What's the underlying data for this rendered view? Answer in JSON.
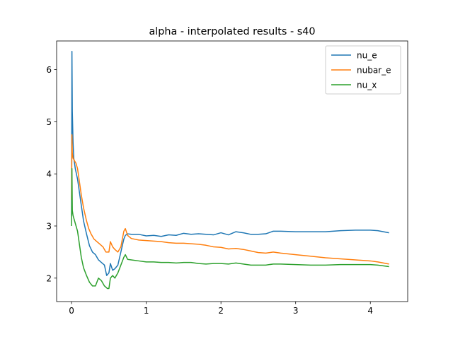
{
  "chart_data": {
    "type": "line",
    "title": "alpha - interpolated results - s40",
    "xlabel": "",
    "ylabel": "",
    "xlim": [
      -0.2,
      4.5
    ],
    "ylim": [
      1.55,
      6.55
    ],
    "xticks": [
      0,
      1,
      2,
      3,
      4
    ],
    "yticks": [
      2,
      3,
      4,
      5,
      6
    ],
    "grid": false,
    "legend_position": "top-right",
    "series": [
      {
        "name": "nu_e",
        "color": "#1f77b4",
        "points": [
          [
            0.0,
            3.2
          ],
          [
            0.005,
            6.35
          ],
          [
            0.01,
            5.2
          ],
          [
            0.02,
            4.6
          ],
          [
            0.03,
            4.3
          ],
          [
            0.05,
            4.1
          ],
          [
            0.08,
            3.9
          ],
          [
            0.1,
            3.7
          ],
          [
            0.13,
            3.4
          ],
          [
            0.16,
            3.1
          ],
          [
            0.2,
            2.85
          ],
          [
            0.24,
            2.62
          ],
          [
            0.28,
            2.5
          ],
          [
            0.32,
            2.45
          ],
          [
            0.36,
            2.35
          ],
          [
            0.4,
            2.3
          ],
          [
            0.44,
            2.25
          ],
          [
            0.47,
            2.05
          ],
          [
            0.5,
            2.1
          ],
          [
            0.52,
            2.28
          ],
          [
            0.55,
            2.15
          ],
          [
            0.58,
            2.18
          ],
          [
            0.62,
            2.25
          ],
          [
            0.66,
            2.5
          ],
          [
            0.7,
            2.75
          ],
          [
            0.72,
            2.82
          ],
          [
            0.75,
            2.85
          ],
          [
            0.8,
            2.84
          ],
          [
            0.9,
            2.84
          ],
          [
            1.0,
            2.81
          ],
          [
            1.1,
            2.82
          ],
          [
            1.2,
            2.8
          ],
          [
            1.3,
            2.83
          ],
          [
            1.4,
            2.82
          ],
          [
            1.5,
            2.86
          ],
          [
            1.6,
            2.84
          ],
          [
            1.7,
            2.85
          ],
          [
            1.8,
            2.84
          ],
          [
            1.9,
            2.83
          ],
          [
            2.0,
            2.87
          ],
          [
            2.1,
            2.83
          ],
          [
            2.2,
            2.89
          ],
          [
            2.3,
            2.87
          ],
          [
            2.4,
            2.84
          ],
          [
            2.5,
            2.84
          ],
          [
            2.6,
            2.85
          ],
          [
            2.7,
            2.9
          ],
          [
            2.8,
            2.9
          ],
          [
            3.0,
            2.89
          ],
          [
            3.2,
            2.89
          ],
          [
            3.4,
            2.89
          ],
          [
            3.6,
            2.91
          ],
          [
            3.8,
            2.92
          ],
          [
            4.0,
            2.92
          ],
          [
            4.1,
            2.91
          ],
          [
            4.25,
            2.87
          ]
        ]
      },
      {
        "name": "nubar_e",
        "color": "#ff7f0e",
        "points": [
          [
            0.0,
            3.5
          ],
          [
            0.005,
            4.75
          ],
          [
            0.01,
            4.4
          ],
          [
            0.02,
            4.3
          ],
          [
            0.04,
            4.25
          ],
          [
            0.06,
            4.2
          ],
          [
            0.08,
            4.1
          ],
          [
            0.1,
            3.9
          ],
          [
            0.13,
            3.6
          ],
          [
            0.16,
            3.35
          ],
          [
            0.2,
            3.1
          ],
          [
            0.23,
            2.95
          ],
          [
            0.26,
            2.85
          ],
          [
            0.3,
            2.75
          ],
          [
            0.34,
            2.7
          ],
          [
            0.38,
            2.65
          ],
          [
            0.42,
            2.6
          ],
          [
            0.46,
            2.5
          ],
          [
            0.5,
            2.5
          ],
          [
            0.52,
            2.7
          ],
          [
            0.55,
            2.6
          ],
          [
            0.58,
            2.55
          ],
          [
            0.62,
            2.5
          ],
          [
            0.66,
            2.6
          ],
          [
            0.7,
            2.9
          ],
          [
            0.72,
            2.95
          ],
          [
            0.75,
            2.82
          ],
          [
            0.8,
            2.76
          ],
          [
            0.9,
            2.73
          ],
          [
            1.0,
            2.72
          ],
          [
            1.1,
            2.71
          ],
          [
            1.2,
            2.7
          ],
          [
            1.3,
            2.68
          ],
          [
            1.4,
            2.67
          ],
          [
            1.5,
            2.67
          ],
          [
            1.6,
            2.66
          ],
          [
            1.7,
            2.65
          ],
          [
            1.8,
            2.63
          ],
          [
            1.9,
            2.6
          ],
          [
            2.0,
            2.59
          ],
          [
            2.1,
            2.56
          ],
          [
            2.2,
            2.57
          ],
          [
            2.3,
            2.55
          ],
          [
            2.4,
            2.52
          ],
          [
            2.5,
            2.49
          ],
          [
            2.6,
            2.48
          ],
          [
            2.7,
            2.5
          ],
          [
            2.8,
            2.48
          ],
          [
            3.0,
            2.45
          ],
          [
            3.2,
            2.42
          ],
          [
            3.4,
            2.39
          ],
          [
            3.6,
            2.37
          ],
          [
            3.8,
            2.35
          ],
          [
            4.0,
            2.33
          ],
          [
            4.1,
            2.31
          ],
          [
            4.25,
            2.27
          ]
        ]
      },
      {
        "name": "nu_x",
        "color": "#2ca02c",
        "points": [
          [
            0.0,
            3.0
          ],
          [
            0.005,
            4.1
          ],
          [
            0.01,
            3.3
          ],
          [
            0.02,
            3.2
          ],
          [
            0.04,
            3.1
          ],
          [
            0.06,
            3.0
          ],
          [
            0.08,
            2.9
          ],
          [
            0.1,
            2.7
          ],
          [
            0.13,
            2.4
          ],
          [
            0.16,
            2.2
          ],
          [
            0.2,
            2.05
          ],
          [
            0.24,
            1.92
          ],
          [
            0.28,
            1.85
          ],
          [
            0.32,
            1.85
          ],
          [
            0.36,
            2.0
          ],
          [
            0.4,
            1.95
          ],
          [
            0.44,
            1.85
          ],
          [
            0.48,
            1.8
          ],
          [
            0.5,
            1.8
          ],
          [
            0.52,
            2.0
          ],
          [
            0.55,
            2.05
          ],
          [
            0.58,
            2.0
          ],
          [
            0.62,
            2.1
          ],
          [
            0.66,
            2.25
          ],
          [
            0.7,
            2.4
          ],
          [
            0.72,
            2.45
          ],
          [
            0.75,
            2.36
          ],
          [
            0.8,
            2.35
          ],
          [
            0.9,
            2.33
          ],
          [
            1.0,
            2.31
          ],
          [
            1.1,
            2.31
          ],
          [
            1.2,
            2.3
          ],
          [
            1.3,
            2.3
          ],
          [
            1.4,
            2.29
          ],
          [
            1.5,
            2.3
          ],
          [
            1.6,
            2.3
          ],
          [
            1.7,
            2.28
          ],
          [
            1.8,
            2.27
          ],
          [
            1.9,
            2.28
          ],
          [
            2.0,
            2.28
          ],
          [
            2.1,
            2.27
          ],
          [
            2.2,
            2.29
          ],
          [
            2.3,
            2.27
          ],
          [
            2.4,
            2.25
          ],
          [
            2.5,
            2.25
          ],
          [
            2.6,
            2.25
          ],
          [
            2.7,
            2.27
          ],
          [
            2.8,
            2.27
          ],
          [
            3.0,
            2.26
          ],
          [
            3.2,
            2.25
          ],
          [
            3.4,
            2.25
          ],
          [
            3.6,
            2.26
          ],
          [
            3.8,
            2.26
          ],
          [
            4.0,
            2.26
          ],
          [
            4.1,
            2.25
          ],
          [
            4.25,
            2.22
          ]
        ]
      }
    ]
  }
}
